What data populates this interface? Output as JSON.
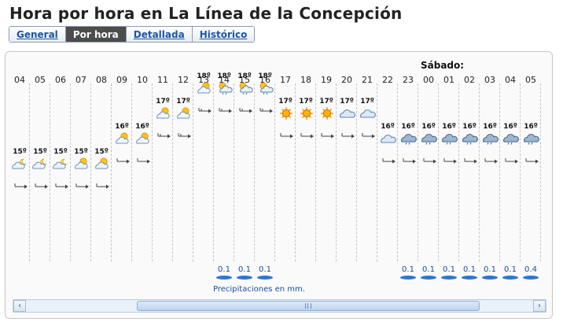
{
  "page": {
    "title": "Hora por hora en La Línea de la Concepción"
  },
  "tabs": [
    {
      "label": "General",
      "active": false
    },
    {
      "label": "Por hora",
      "active": true
    },
    {
      "label": "Detallada",
      "active": false
    },
    {
      "label": "Histórico",
      "active": false
    }
  ],
  "forecast": {
    "day_label": "Sábado:",
    "precip_note": "Precipitaciones en mm.",
    "hours": [
      {
        "hour": "04",
        "temp": "15º",
        "icon": "partly-cloudy-night-icon",
        "rain": ""
      },
      {
        "hour": "05",
        "temp": "15º",
        "icon": "partly-cloudy-night-icon",
        "rain": ""
      },
      {
        "hour": "06",
        "temp": "15º",
        "icon": "partly-cloudy-night-icon",
        "rain": ""
      },
      {
        "hour": "07",
        "temp": "15º",
        "icon": "partly-cloudy-sun-icon",
        "rain": ""
      },
      {
        "hour": "08",
        "temp": "15º",
        "icon": "partly-cloudy-sun-icon",
        "rain": ""
      },
      {
        "hour": "09",
        "temp": "16º",
        "icon": "partly-cloudy-sun-icon",
        "rain": ""
      },
      {
        "hour": "10",
        "temp": "16º",
        "icon": "partly-cloudy-sun-icon",
        "rain": ""
      },
      {
        "hour": "11",
        "temp": "17º",
        "icon": "partly-cloudy-sun-icon",
        "rain": ""
      },
      {
        "hour": "12",
        "temp": "17º",
        "icon": "partly-cloudy-sun-icon",
        "rain": ""
      },
      {
        "hour": "13",
        "temp": "18º",
        "icon": "partly-cloudy-sun-icon",
        "rain": ""
      },
      {
        "hour": "14",
        "temp": "18º",
        "icon": "sun-rain-cloud-icon",
        "rain": "0.1"
      },
      {
        "hour": "15",
        "temp": "18º",
        "icon": "sun-rain-cloud-icon",
        "rain": "0.1"
      },
      {
        "hour": "16",
        "temp": "18º",
        "icon": "sun-rain-cloud-icon",
        "rain": "0.1"
      },
      {
        "hour": "17",
        "temp": "17º",
        "icon": "sun-icon",
        "rain": ""
      },
      {
        "hour": "18",
        "temp": "17º",
        "icon": "sun-icon",
        "rain": ""
      },
      {
        "hour": "19",
        "temp": "17º",
        "icon": "sun-icon",
        "rain": ""
      },
      {
        "hour": "20",
        "temp": "17º",
        "icon": "cloud-icon",
        "rain": ""
      },
      {
        "hour": "21",
        "temp": "17º",
        "icon": "cloud-icon",
        "rain": ""
      },
      {
        "hour": "22",
        "temp": "16º",
        "icon": "cloud-icon",
        "rain": ""
      },
      {
        "hour": "23",
        "temp": "16º",
        "icon": "dark-rain-cloud-icon",
        "rain": "0.1"
      },
      {
        "hour": "00",
        "temp": "16º",
        "icon": "dark-rain-cloud-icon",
        "rain": "0.1"
      },
      {
        "hour": "01",
        "temp": "16º",
        "icon": "dark-rain-cloud-icon",
        "rain": "0.1"
      },
      {
        "hour": "02",
        "temp": "16º",
        "icon": "dark-rain-cloud-icon",
        "rain": "0.1"
      },
      {
        "hour": "03",
        "temp": "16º",
        "icon": "dark-rain-cloud-icon",
        "rain": "0.1"
      },
      {
        "hour": "04",
        "temp": "16º",
        "icon": "dark-rain-cloud-icon",
        "rain": "0.1"
      },
      {
        "hour": "05",
        "temp": "16º",
        "icon": "dark-rain-cloud-icon",
        "rain": "0.4"
      }
    ]
  },
  "scrollbar": {
    "left_arrow": "‹",
    "right_arrow": "›"
  },
  "colors": {
    "tab_active_bg": "#4d4d4d",
    "link": "#1a56a8",
    "rain": "#2f76d2"
  }
}
